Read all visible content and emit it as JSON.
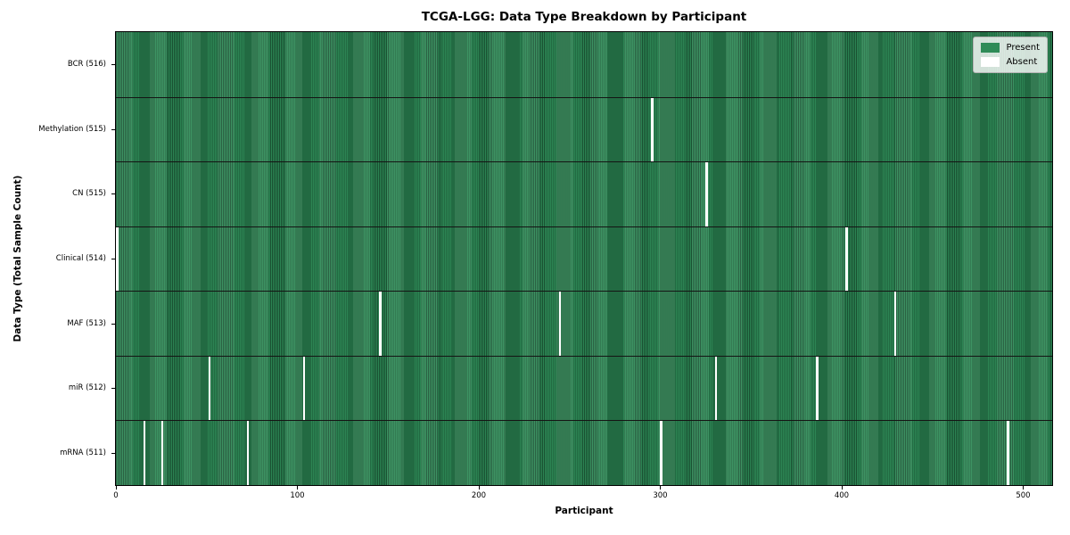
{
  "title": "TCGA-LGG: Data Type Breakdown by Participant",
  "axes": {
    "x_label": "Participant",
    "y_label": "Data Type (Total Sample Count)"
  },
  "legend": {
    "items": [
      {
        "label": "Present",
        "color": "#2e8b57"
      },
      {
        "label": "Absent",
        "color": "#ffffff"
      }
    ]
  },
  "colors": {
    "bar_fill": "#2e8b57",
    "bar_edge": "#1a5434",
    "row_divider": "#141414",
    "plot_border": "#000000",
    "legend_bg": "rgba(255,255,255,0.8)",
    "legend_border": "#b5b5b5"
  },
  "chart_data": {
    "type": "heatmap",
    "title": "TCGA-LGG: Data Type Breakdown by Participant",
    "xlabel": "Participant",
    "ylabel": "Data Type (Total Sample Count)",
    "x_ticks": [
      0,
      100,
      200,
      300,
      400,
      500
    ],
    "xlim": [
      0,
      516
    ],
    "n_participants": 516,
    "grid": false,
    "legend_position": "upper right",
    "cell_states": {
      "present": "Present",
      "absent": "Absent"
    },
    "rows": [
      {
        "label": "BCR (516)",
        "data_type": "BCR",
        "total_samples": 516,
        "absent_participants": []
      },
      {
        "label": "Methylation (515)",
        "data_type": "Methylation",
        "total_samples": 515,
        "absent_participants": [
          295
        ]
      },
      {
        "label": "CN (515)",
        "data_type": "CN",
        "total_samples": 515,
        "absent_participants": [
          325
        ]
      },
      {
        "label": "Clinical (514)",
        "data_type": "Clinical",
        "total_samples": 514,
        "absent_participants": [
          0,
          402
        ]
      },
      {
        "label": "MAF (513)",
        "data_type": "MAF",
        "total_samples": 513,
        "absent_participants": [
          145,
          244,
          429
        ]
      },
      {
        "label": "miR (512)",
        "data_type": "miR",
        "total_samples": 512,
        "absent_participants": [
          51,
          103,
          330,
          386
        ]
      },
      {
        "label": "mRNA (511)",
        "data_type": "mRNA",
        "total_samples": 511,
        "absent_participants": [
          15,
          25,
          72,
          300,
          491
        ]
      }
    ]
  }
}
